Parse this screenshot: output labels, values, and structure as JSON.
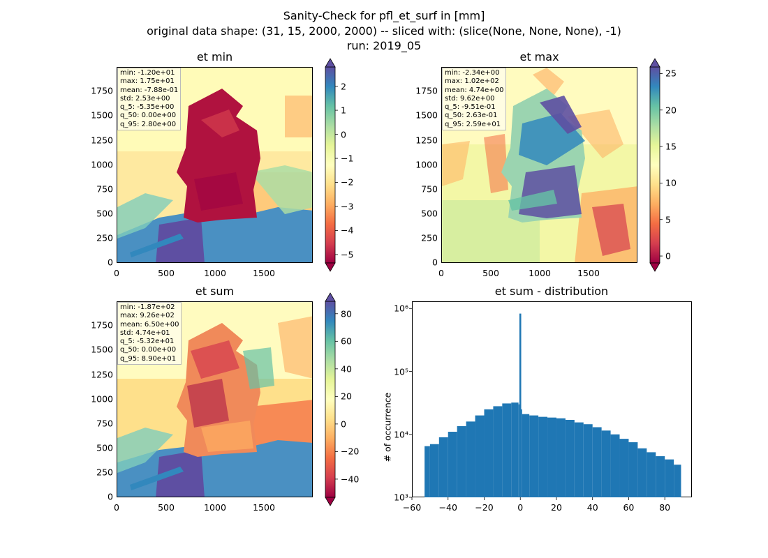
{
  "figure": {
    "title_line1": "Sanity-Check for pfl_et_surf in [mm]",
    "title_line2": "original data shape: (31, 15, 2000, 2000) -- sliced with: (slice(None, None, None), -1)",
    "title_line3": "run: 2019_05"
  },
  "colors": {
    "spectral": [
      "#9e0142",
      "#d53e4f",
      "#f46d43",
      "#fdae61",
      "#fee08b",
      "#ffffbf",
      "#e6f598",
      "#abdda4",
      "#66c2a5",
      "#3288bd",
      "#5e4fa2"
    ],
    "hist_bar": "#1f77b4"
  },
  "maps": [
    {
      "id": "et-min",
      "title": "et min",
      "stats": [
        "min: -1.20e+01",
        "max: 1.75e+01",
        "mean: -7.88e-01",
        "std: 2.53e+00",
        "q_5: -5.35e+00",
        "q_50: 0.00e+00",
        "q_95: 2.80e+00"
      ],
      "xticks": [
        "0",
        "500",
        "1000",
        "1500"
      ],
      "yticks": [
        "0",
        "250",
        "500",
        "750",
        "1000",
        "1250",
        "1500",
        "1750"
      ],
      "cbar_ticks": [
        "2",
        "1",
        "0",
        "−1",
        "−2",
        "−3",
        "−4",
        "−5"
      ],
      "cbar_values": [
        2,
        1,
        0,
        -1,
        -2,
        -3,
        -4,
        -5
      ],
      "cbar_range": [
        -5.35,
        2.8
      ]
    },
    {
      "id": "et-max",
      "title": "et max",
      "stats": [
        "min: -2.34e+00",
        "max: 1.02e+02",
        "mean: 4.74e+00",
        "std: 9.62e+00",
        "q_5: -9.51e-01",
        "q_50: 2.63e-01",
        "q_95: 2.59e+01"
      ],
      "xticks": [
        "0",
        "500",
        "1000",
        "1500"
      ],
      "yticks": [
        "0",
        "250",
        "500",
        "750",
        "1000",
        "1250",
        "1500",
        "1750"
      ],
      "cbar_ticks": [
        "25",
        "20",
        "15",
        "10",
        "5",
        "0"
      ],
      "cbar_values": [
        25,
        20,
        15,
        10,
        5,
        0
      ],
      "cbar_range": [
        -0.951,
        25.9
      ]
    },
    {
      "id": "et-sum",
      "title": "et sum",
      "stats": [
        "min: -1.87e+02",
        "max: 9.26e+02",
        "mean: 6.50e+00",
        "std: 4.74e+01",
        "q_5: -5.32e+01",
        "q_50: 0.00e+00",
        "q_95: 8.90e+01"
      ],
      "xticks": [
        "0",
        "500",
        "1000",
        "1500"
      ],
      "yticks": [
        "0",
        "250",
        "500",
        "750",
        "1000",
        "1250",
        "1500",
        "1750"
      ],
      "cbar_ticks": [
        "80",
        "60",
        "40",
        "20",
        "0",
        "−20",
        "−40"
      ],
      "cbar_values": [
        80,
        60,
        40,
        20,
        0,
        -20,
        -40
      ],
      "cbar_range": [
        -53.2,
        89.0
      ]
    }
  ],
  "chart_data": {
    "type": "bar",
    "title": "et sum - distribution",
    "xlabel": "",
    "ylabel": "# of occurrence",
    "yscale": "log",
    "xlim": [
      -60,
      95
    ],
    "ylim": [
      1000,
      1300000
    ],
    "xticks": [
      "−60",
      "−40",
      "−20",
      "0",
      "20",
      "40",
      "60",
      "80"
    ],
    "yticks": [
      "10³",
      "10⁴",
      "10⁵",
      "10⁶"
    ],
    "bin_edges_x": [
      -53,
      -50,
      -45,
      -40,
      -35,
      -30,
      -25,
      -20,
      -15,
      -10,
      -5,
      -1,
      -0.5,
      0.5,
      1,
      5,
      10,
      15,
      20,
      25,
      30,
      35,
      40,
      45,
      50,
      55,
      60,
      65,
      70,
      75,
      80,
      85,
      89
    ],
    "values": [
      6500,
      7000,
      9000,
      11000,
      13500,
      16000,
      20000,
      25000,
      28000,
      31000,
      32000,
      30000,
      830000,
      25000,
      21000,
      20000,
      19000,
      18500,
      18000,
      17000,
      15500,
      14500,
      13000,
      11500,
      10000,
      8500,
      7500,
      6000,
      5200,
      4500,
      4000,
      3300
    ]
  }
}
